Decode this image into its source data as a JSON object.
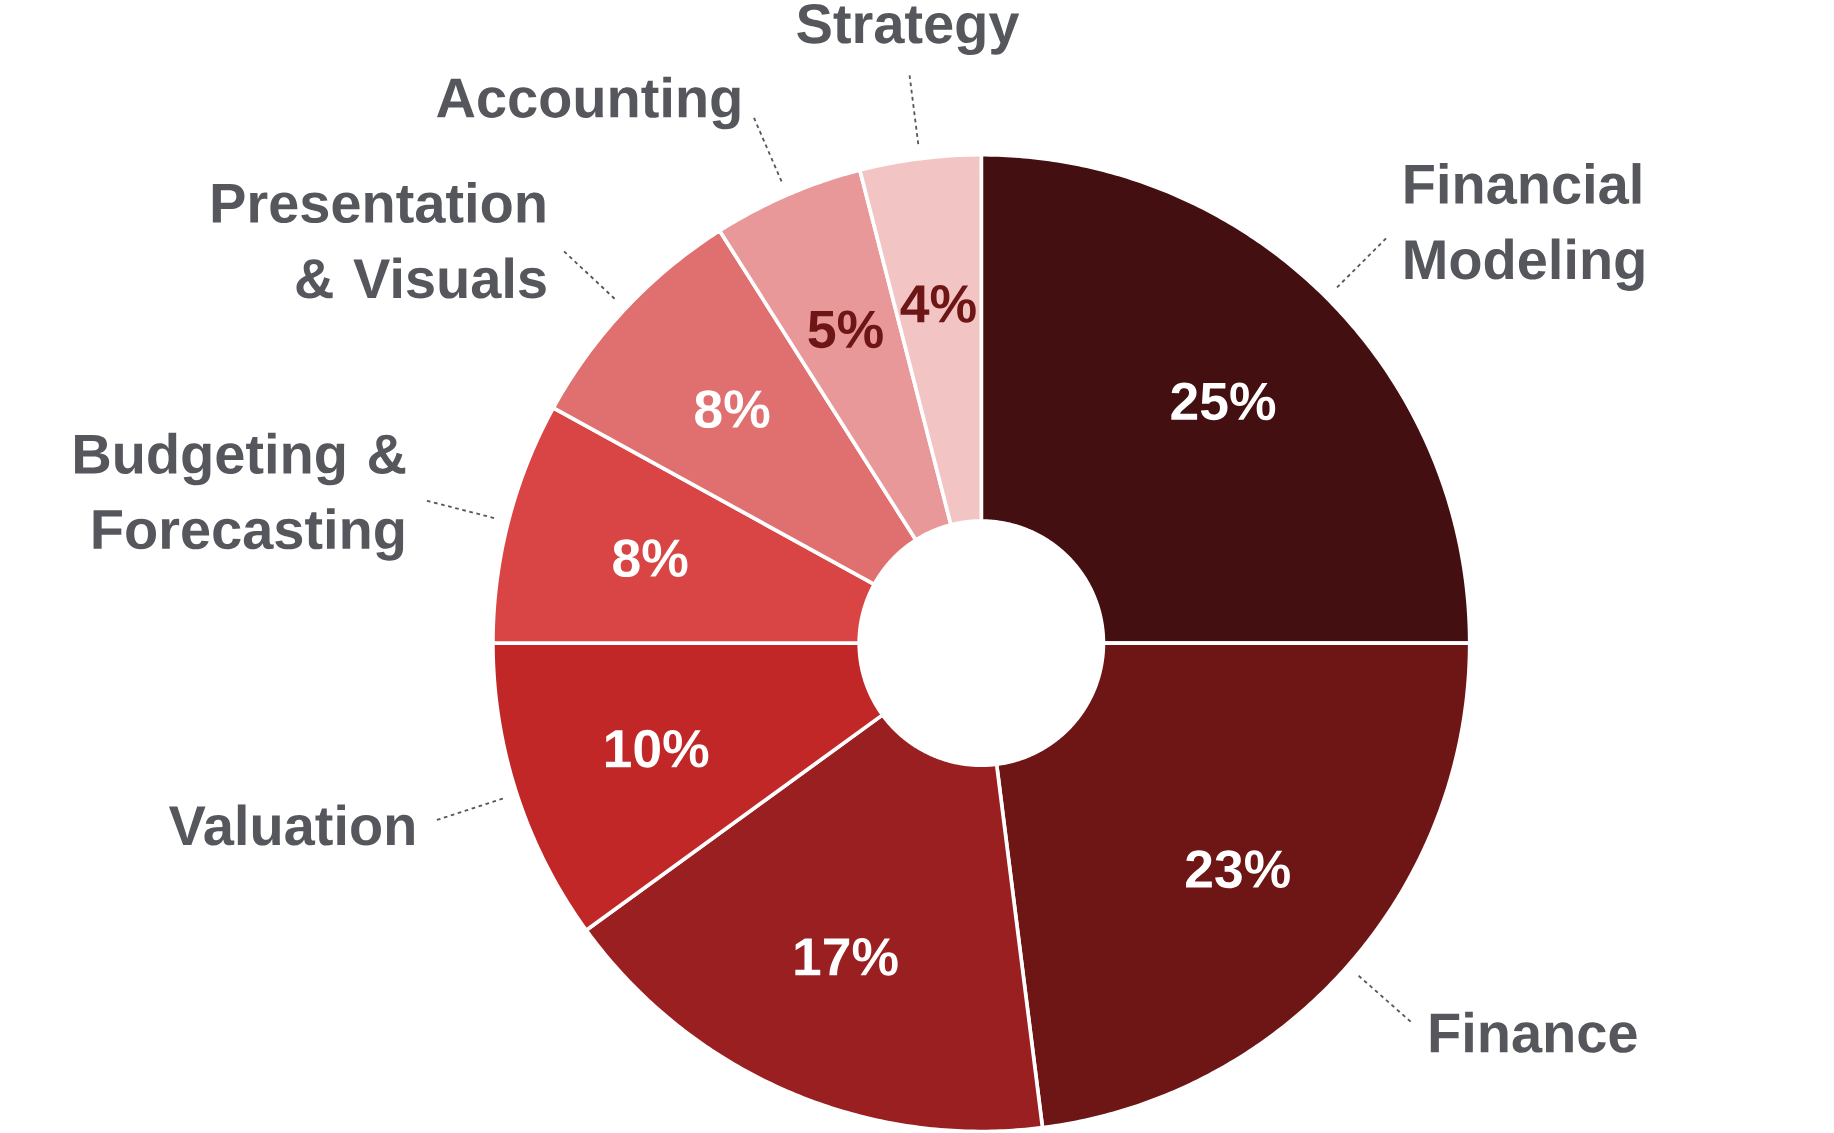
{
  "chart_data": {
    "type": "donut",
    "categories": [
      "Financial Modeling",
      "Finance",
      null,
      "Valuation",
      "Budgeting & Forecasting",
      "Presentation & Visuals",
      "Accounting",
      "Strategy"
    ],
    "values": [
      25,
      23,
      17,
      10,
      8,
      8,
      5,
      4
    ],
    "colors": [
      "#440f10",
      "#6e1616",
      "#9a1f20",
      "#c12727",
      "#d94545",
      "#e07070",
      "#e89898",
      "#f2c4c4"
    ],
    "value_labels": [
      "25%",
      "23%",
      "17%",
      "10%",
      "8%",
      "8%",
      "5%",
      "4%"
    ]
  }
}
